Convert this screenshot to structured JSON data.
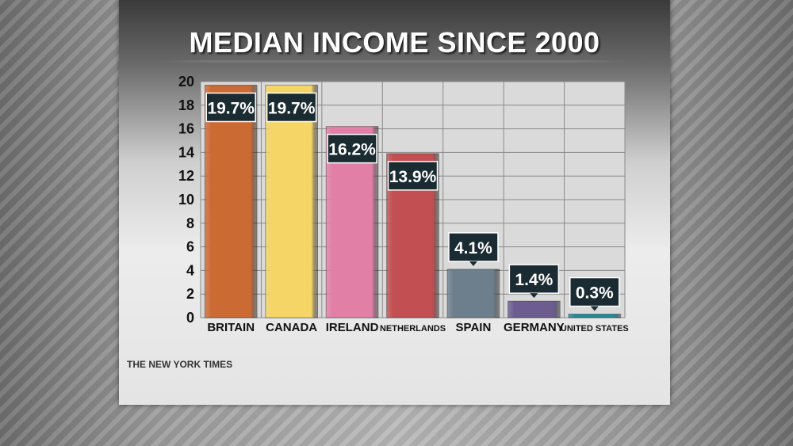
{
  "title": "MEDIAN INCOME SINCE 2000",
  "source": "THE NEW YORK TIMES",
  "chart_data": {
    "type": "bar",
    "title": "MEDIAN INCOME SINCE 2000",
    "xlabel": "",
    "ylabel": "",
    "ylim": [
      0,
      20
    ],
    "yticks": [
      0,
      2,
      4,
      6,
      8,
      10,
      12,
      14,
      16,
      18,
      20
    ],
    "grid": true,
    "categories": [
      "BRITAIN",
      "CANADA",
      "IRELAND",
      "NETHERLANDS",
      "SPAIN",
      "GERMANY",
      "UNITED STATES"
    ],
    "values": [
      19.7,
      19.7,
      16.2,
      13.9,
      4.1,
      1.4,
      0.3
    ],
    "value_labels": [
      "19.7%",
      "19.7%",
      "16.2%",
      "13.9%",
      "4.1%",
      "1.4%",
      "0.3%"
    ],
    "colors": [
      "#cc6a34",
      "#f5d566",
      "#e27fa6",
      "#c24f51",
      "#6d7f8c",
      "#6c5c8f",
      "#1e8b99"
    ]
  }
}
